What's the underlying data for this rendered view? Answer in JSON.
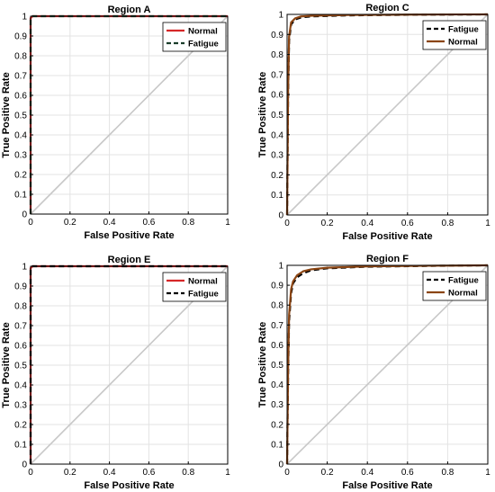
{
  "chart_data": [
    {
      "type": "line",
      "title": "Region A",
      "xlabel": "False Positive Rate",
      "ylabel": "True Positive Rate",
      "xlim": [
        0,
        1
      ],
      "ylim": [
        0,
        1
      ],
      "xticks": [
        "0",
        "0.2",
        "0.4",
        "0.6",
        "0.8",
        "1"
      ],
      "yticks": [
        "0",
        "0.1",
        "0.2",
        "0.3",
        "0.4",
        "0.5",
        "0.6",
        "0.7",
        "0.8",
        "0.9",
        "1"
      ],
      "grid": true,
      "legend_position": "top-right",
      "series": [
        {
          "name": "Normal",
          "color": "#d62728",
          "style": "solid",
          "x": [
            0,
            0,
            0.01,
            1
          ],
          "y": [
            0,
            0.99,
            1,
            1
          ]
        },
        {
          "name": "Fatigue",
          "color": "#1a3d2a",
          "style": "dashed",
          "x": [
            0,
            0,
            0.01,
            1
          ],
          "y": [
            0,
            0.99,
            1,
            1
          ]
        }
      ]
    },
    {
      "type": "line",
      "title": "Region C",
      "xlabel": "False Positive Rate",
      "ylabel": "True Positive Rate",
      "xlim": [
        0,
        1
      ],
      "ylim": [
        0,
        1
      ],
      "xticks": [
        "0",
        "0.2",
        "0.4",
        "0.6",
        "0.8",
        "1"
      ],
      "yticks": [
        "0",
        "0.1",
        "0.2",
        "0.3",
        "0.4",
        "0.5",
        "0.6",
        "0.7",
        "0.8",
        "0.9",
        "1"
      ],
      "grid": true,
      "legend_position": "top-right",
      "series": [
        {
          "name": "Fatigue",
          "color": "#000000",
          "style": "dashed",
          "x": [
            0,
            0.005,
            0.01,
            0.02,
            0.04,
            0.07,
            0.12,
            0.3,
            0.6,
            1
          ],
          "y": [
            0,
            0.6,
            0.87,
            0.95,
            0.975,
            0.985,
            0.99,
            0.995,
            0.998,
            1
          ]
        },
        {
          "name": "Normal",
          "color": "#8b4513",
          "style": "solid",
          "x": [
            0,
            0.005,
            0.01,
            0.02,
            0.04,
            0.07,
            0.12,
            0.3,
            0.6,
            1
          ],
          "y": [
            0,
            0.62,
            0.89,
            0.96,
            0.98,
            0.99,
            0.993,
            0.997,
            0.999,
            1
          ]
        }
      ]
    },
    {
      "type": "line",
      "title": "Region E",
      "xlabel": "False Positive Rate",
      "ylabel": "True Positive Rate",
      "xlim": [
        0,
        1
      ],
      "ylim": [
        0,
        1
      ],
      "xticks": [
        "0",
        "0.2",
        "0.4",
        "0.6",
        "0.8",
        "1"
      ],
      "yticks": [
        "0",
        "0.1",
        "0.2",
        "0.3",
        "0.4",
        "0.5",
        "0.6",
        "0.7",
        "0.8",
        "0.9",
        "1"
      ],
      "grid": true,
      "legend_position": "top-right",
      "series": [
        {
          "name": "Normal",
          "color": "#d62728",
          "style": "solid",
          "x": [
            0,
            0,
            0.01,
            1
          ],
          "y": [
            0,
            0.99,
            1,
            1
          ]
        },
        {
          "name": "Fatigue",
          "color": "#000000",
          "style": "dashed",
          "x": [
            0,
            0,
            0.01,
            1
          ],
          "y": [
            0,
            0.99,
            1,
            1
          ]
        }
      ]
    },
    {
      "type": "line",
      "title": "Region F",
      "xlabel": "False Positive Rate",
      "ylabel": "True Positive Rate",
      "xlim": [
        0,
        1
      ],
      "ylim": [
        0,
        1
      ],
      "xticks": [
        "0",
        "0.2",
        "0.4",
        "0.6",
        "0.8",
        "1"
      ],
      "yticks": [
        "0",
        "0.1",
        "0.2",
        "0.3",
        "0.4",
        "0.5",
        "0.6",
        "0.7",
        "0.8",
        "0.9",
        "1"
      ],
      "grid": true,
      "legend_position": "top-right",
      "series": [
        {
          "name": "Fatigue",
          "color": "#000000",
          "style": "dashed",
          "x": [
            0,
            0.005,
            0.01,
            0.02,
            0.03,
            0.05,
            0.08,
            0.12,
            0.2,
            0.4,
            0.7,
            1
          ],
          "y": [
            0,
            0.45,
            0.72,
            0.86,
            0.91,
            0.94,
            0.96,
            0.975,
            0.985,
            0.993,
            0.997,
            1
          ]
        },
        {
          "name": "Normal",
          "color": "#8b4513",
          "style": "solid",
          "x": [
            0,
            0.005,
            0.01,
            0.02,
            0.03,
            0.05,
            0.08,
            0.12,
            0.2,
            0.4,
            0.7,
            1
          ],
          "y": [
            0,
            0.48,
            0.75,
            0.88,
            0.92,
            0.95,
            0.97,
            0.98,
            0.988,
            0.995,
            0.998,
            1
          ]
        }
      ]
    }
  ],
  "colors": {
    "grid": "#e3e3e3",
    "diagonal": "#c8c8c8",
    "axis": "#000000"
  }
}
